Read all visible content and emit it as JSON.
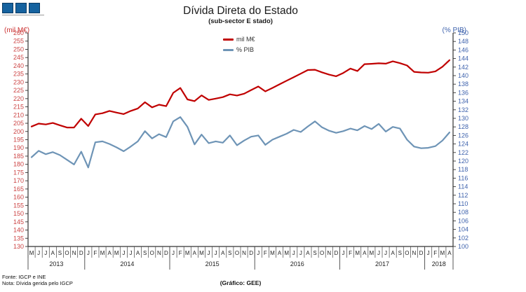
{
  "header": {
    "title": "Dívida Direta do Estado",
    "subtitle": "(sub-sector E stado)"
  },
  "left_axis_unit": "(mil M€)",
  "right_axis_unit": "(% PIB)",
  "legend": [
    {
      "label": "mil M€",
      "color": "#c00000"
    },
    {
      "label": "% PIB",
      "color": "#6e94b6"
    }
  ],
  "footer": {
    "source": "Fonte: IGCP e INE",
    "note": "Nota: Dívida gerida pelo IGCP",
    "credit": "(Gráfico:  GEE)"
  },
  "colors": {
    "red_series": "#c00000",
    "blue_series": "#6e94b6",
    "left_tick_text": "#cc4444",
    "right_tick_text": "#3f63ad",
    "axis_line": "#333333",
    "month_text": "#222222",
    "year_text": "#222222"
  },
  "chart_data": {
    "type": "line",
    "title": "Dívida Direta do Estado",
    "subtitle": "(sub-sector Estado)",
    "x_month_letters": [
      "M",
      "J",
      "J",
      "A",
      "S",
      "O",
      "N",
      "D",
      "J",
      "F",
      "M",
      "A",
      "M",
      "J",
      "J",
      "A",
      "S",
      "O",
      "N",
      "D",
      "J",
      "F",
      "M",
      "A",
      "M",
      "J",
      "J",
      "A",
      "S",
      "O",
      "N",
      "D",
      "J",
      "F",
      "M",
      "A",
      "M",
      "J",
      "J",
      "A",
      "S",
      "O",
      "N",
      "D",
      "J",
      "F",
      "M",
      "A",
      "M",
      "J",
      "J",
      "A",
      "S",
      "O",
      "N",
      "D",
      "J",
      "F",
      "M",
      "A"
    ],
    "year_groups": [
      {
        "label": "2013",
        "months": 8
      },
      {
        "label": "2014",
        "months": 12
      },
      {
        "label": "2015",
        "months": 12
      },
      {
        "label": "2016",
        "months": 12
      },
      {
        "label": "2017",
        "months": 12
      },
      {
        "label": "2018",
        "months": 4
      }
    ],
    "left_axis": {
      "label": "(mil M€)",
      "min": 130,
      "max": 260,
      "step": 5
    },
    "right_axis": {
      "label": "(% PIB)",
      "min": 100,
      "max": 150,
      "step": 2
    },
    "grid": false,
    "legend_position": "top-center",
    "series": [
      {
        "name": "mil M€",
        "axis": "left",
        "color": "#c00000",
        "values": [
          203.0,
          204.8,
          204.3,
          205.2,
          203.8,
          202.4,
          202.4,
          207.8,
          203.3,
          210.4,
          211.1,
          212.5,
          211.5,
          210.6,
          212.5,
          214.0,
          217.8,
          214.7,
          216.3,
          215.4,
          223.5,
          226.5,
          219.5,
          218.5,
          222.0,
          219.2,
          220.0,
          220.9,
          222.6,
          221.9,
          223.0,
          225.2,
          227.4,
          224.4,
          226.5,
          228.7,
          230.9,
          233.0,
          235.2,
          237.4,
          237.6,
          236.0,
          234.6,
          233.6,
          235.6,
          238.3,
          236.8,
          241.0,
          241.2,
          241.5,
          241.3,
          242.7,
          241.6,
          240.2,
          236.3,
          235.9,
          235.8,
          236.6,
          239.4,
          243.4
        ]
      },
      {
        "name": "% PIB",
        "axis": "right",
        "color": "#6e94b6",
        "values": [
          120.9,
          122.4,
          121.6,
          122.1,
          121.4,
          120.3,
          119.2,
          122.2,
          118.5,
          124.4,
          124.6,
          124.0,
          123.2,
          122.3,
          123.4,
          124.6,
          127.0,
          125.3,
          126.3,
          125.6,
          129.3,
          130.3,
          128.0,
          123.9,
          126.2,
          124.2,
          124.6,
          124.3,
          126.0,
          123.7,
          124.8,
          125.7,
          126.0,
          123.8,
          125.0,
          125.7,
          126.4,
          127.3,
          126.8,
          128.1,
          129.3,
          127.9,
          127.1,
          126.6,
          127.0,
          127.6,
          127.2,
          128.2,
          127.5,
          128.7,
          126.9,
          128.0,
          127.6,
          125.0,
          123.4,
          123.0,
          123.1,
          123.5,
          124.8,
          126.7
        ]
      }
    ]
  }
}
